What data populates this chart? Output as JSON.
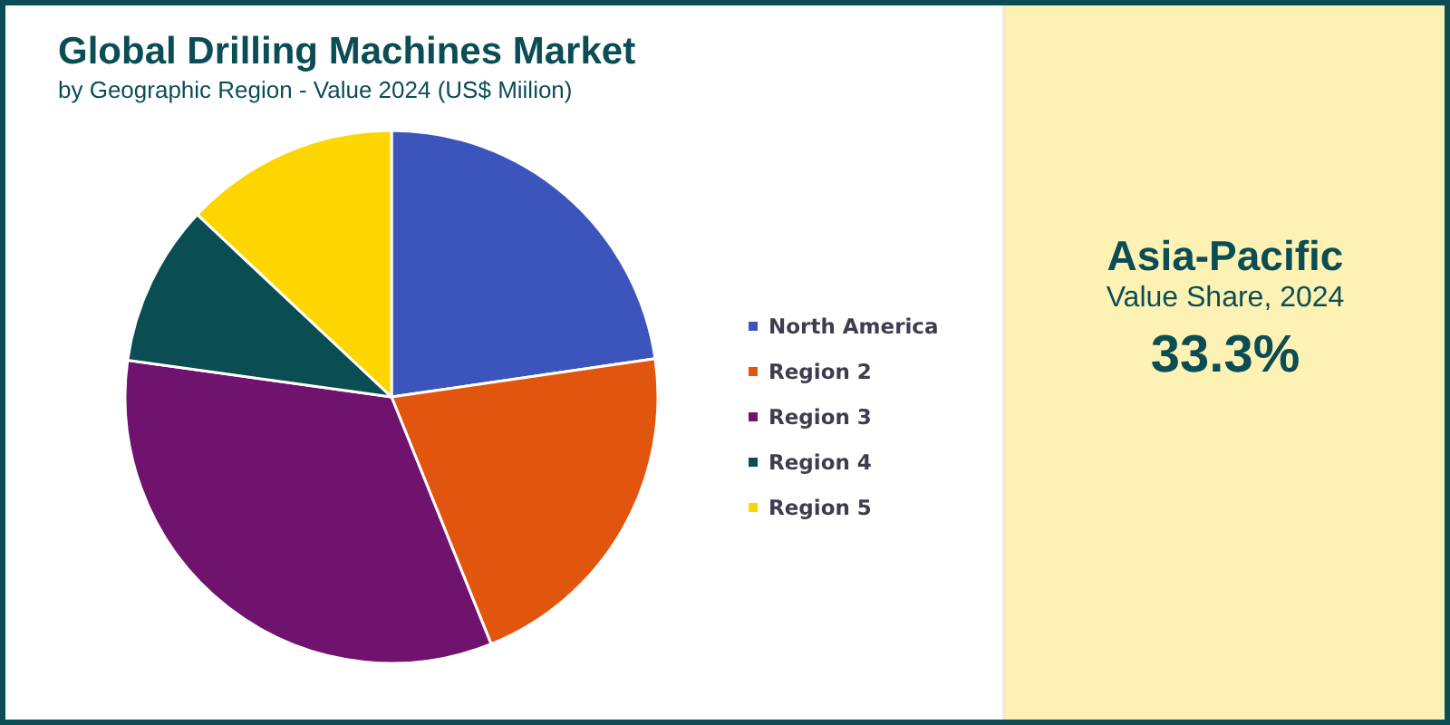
{
  "chart_data": [
    {
      "type": "pie",
      "title": "Global Drilling Machines Market",
      "subtitle": "by Geographic Region - Value 2024 (US$ Miilion)",
      "categories": [
        "North America",
        "Region 2",
        "Region 3",
        "Region 4",
        "Region 5"
      ],
      "values": [
        22.7,
        21.2,
        33.3,
        9.8,
        13.0
      ],
      "colors": [
        "#3b55bd",
        "#e2550f",
        "#70136f",
        "#0a4d52",
        "#fdd600"
      ],
      "legend": "right"
    },
    {
      "type": "other",
      "title": "Asia-Pacific",
      "subtitle": "Value Share, 2024",
      "annotations": [
        "33.3%"
      ]
    }
  ]
}
